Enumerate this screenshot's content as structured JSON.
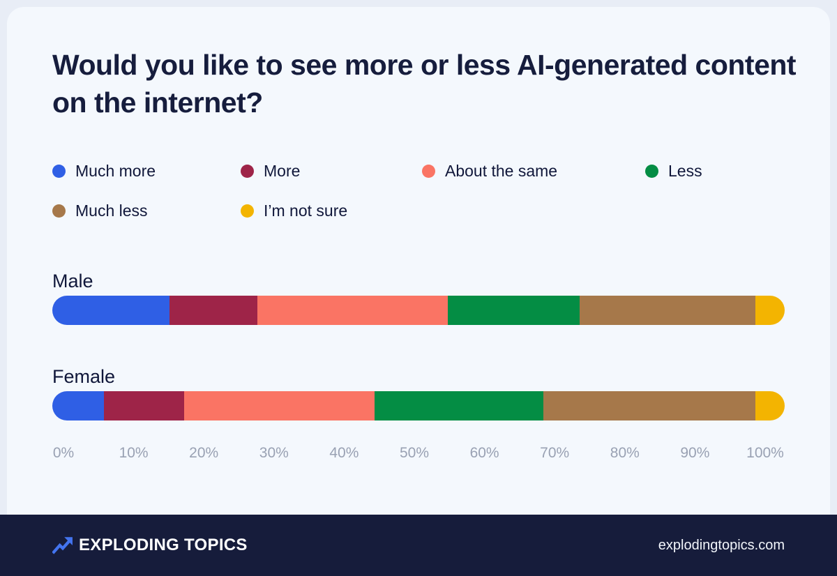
{
  "title": "Would you like to see more or less AI-generated content on the internet?",
  "chart_data": {
    "type": "bar",
    "stacked": true,
    "orientation": "horizontal",
    "unit": "%",
    "categories": [
      "Male",
      "Female"
    ],
    "series": [
      {
        "name": "Much more",
        "color": "#2f5fe5",
        "values": [
          16,
          7
        ]
      },
      {
        "name": "More",
        "color": "#9e2448",
        "values": [
          12,
          11
        ]
      },
      {
        "name": "About the same",
        "color": "#fa7464",
        "values": [
          26,
          26
        ]
      },
      {
        "name": "Less",
        "color": "#048d44",
        "values": [
          18,
          23
        ]
      },
      {
        "name": "Much less",
        "color": "#a6784a",
        "values": [
          24,
          29
        ]
      },
      {
        "name": "I’m not sure",
        "color": "#f3b401",
        "values": [
          4,
          4
        ]
      }
    ],
    "x_axis": {
      "range": [
        0,
        100
      ],
      "ticks": [
        "0%",
        "10%",
        "20%",
        "30%",
        "40%",
        "50%",
        "60%",
        "70%",
        "80%",
        "90%",
        "100%"
      ]
    },
    "legend_position": "top",
    "grid": false
  },
  "footer": {
    "brand": "EXPLODING TOPICS",
    "website": "explodingtopics.com",
    "logo_icon": "trending-up-arrow-icon",
    "logo_color": "#4374ef"
  },
  "colors": {
    "page_background": "#e8edf6",
    "card_background": "#f4f8fd",
    "title_text": "#161d3d",
    "axis_text": "#99a1b3",
    "footer_background": "#161c3b"
  }
}
